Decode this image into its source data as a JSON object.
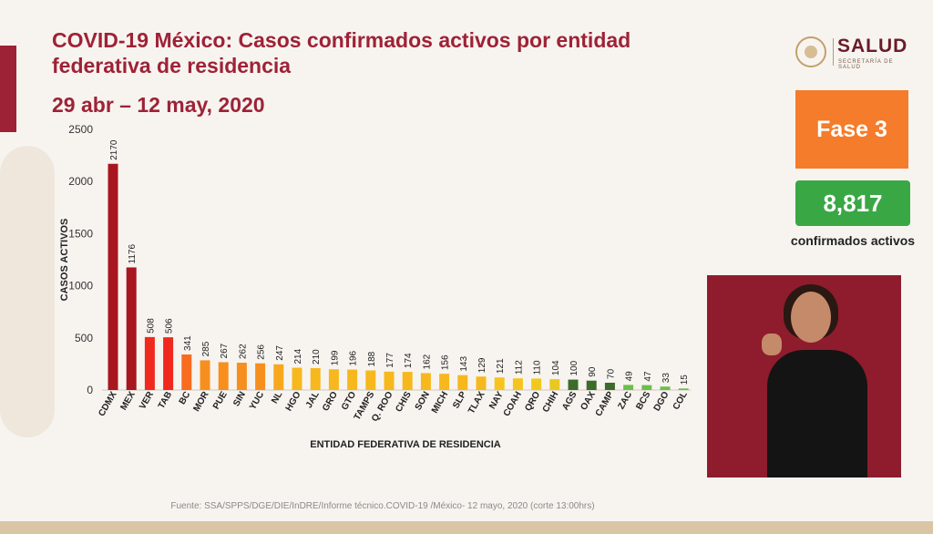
{
  "header": {
    "title": "COVID-19 México: Casos confirmados activos por entidad federativa de residencia",
    "date_range": "29 abr – 12 may, 2020"
  },
  "logo": {
    "name": "SALUD",
    "subtitle": "SECRETARÍA DE SALUD"
  },
  "phase_badge": {
    "label": "Fase 3",
    "color": "#f47c2a"
  },
  "total": {
    "value": "8,817",
    "label": "confirmados activos",
    "color": "#3aa745"
  },
  "source": "Fuente: SSA/SPPS/DGE/DIE/InDRE/Informe técnico.COVID-19 /México- 12 mayo, 2020 (corte 13:00hrs)",
  "chart_data": {
    "type": "bar",
    "title": "",
    "xlabel": "ENTIDAD FEDERATIVA DE  RESIDENCIA",
    "ylabel": "CASOS ACTIVOS",
    "ylim": [
      0,
      2500
    ],
    "yticks": [
      0,
      500,
      1000,
      1500,
      2000,
      2500
    ],
    "grid": false,
    "categories": [
      "CDMX",
      "MEX",
      "VER",
      "TAB",
      "BC",
      "MOR",
      "PUE",
      "SIN",
      "YUC",
      "NL",
      "HGO",
      "JAL",
      "GRO",
      "GTO",
      "TAMPS",
      "Q. ROO",
      "CHIS",
      "SON",
      "MICH",
      "SLP",
      "TLAX",
      "NAY",
      "COAH",
      "QRO",
      "CHIH",
      "AGS",
      "OAX",
      "CAMP",
      "ZAC",
      "BCS",
      "DGO",
      "COL"
    ],
    "values": [
      2170,
      1176,
      508,
      506,
      341,
      285,
      267,
      262,
      256,
      247,
      214,
      210,
      199,
      196,
      188,
      177,
      174,
      162,
      156,
      143,
      129,
      121,
      112,
      110,
      104,
      100,
      90,
      70,
      49,
      47,
      33,
      15
    ],
    "colors": [
      "#a8161f",
      "#a8161f",
      "#f0291e",
      "#f0291e",
      "#f76c1e",
      "#f78f1e",
      "#f78f1e",
      "#f78f1e",
      "#f78f1e",
      "#f7a81e",
      "#f7b81e",
      "#f7b81e",
      "#f7b81e",
      "#f7b81e",
      "#f7b81e",
      "#f7b81e",
      "#f7b81e",
      "#f7b81e",
      "#f7b81e",
      "#f7b81e",
      "#f7b81e",
      "#f7c41e",
      "#f7c41e",
      "#f2c81e",
      "#ebc81e",
      "#3d6b2a",
      "#3d6b2a",
      "#3d6b2a",
      "#6cc04a",
      "#6cc04a",
      "#6cc04a",
      "#6cc04a"
    ]
  }
}
